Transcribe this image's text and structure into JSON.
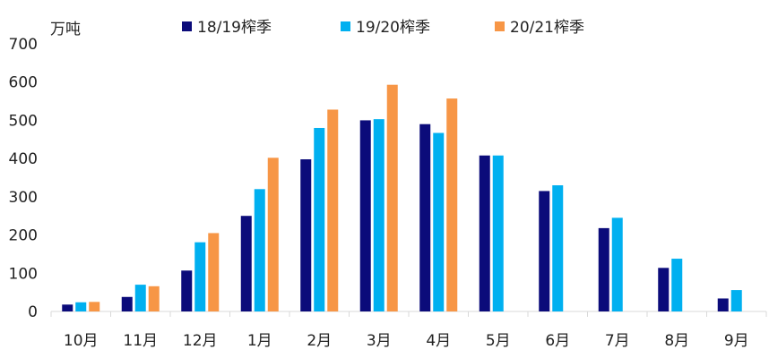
{
  "chart_data": {
    "type": "bar",
    "title": "",
    "xlabel": "",
    "ylabel": "万吨",
    "ylim": [
      0,
      700
    ],
    "yticks": [
      0,
      100,
      200,
      300,
      400,
      500,
      600,
      700
    ],
    "grid": false,
    "legend_position": "top",
    "categories": [
      "10月",
      "11月",
      "12月",
      "1月",
      "2月",
      "3月",
      "4月",
      "5月",
      "6月",
      "7月",
      "8月",
      "9月"
    ],
    "series": [
      {
        "name": "18/19榨季",
        "color": "#0b0b7a",
        "values": [
          18,
          38,
          107,
          250,
          398,
          500,
          490,
          408,
          315,
          218,
          114,
          34
        ]
      },
      {
        "name": "19/20榨季",
        "color": "#00b0f0",
        "values": [
          24,
          70,
          181,
          320,
          480,
          503,
          467,
          408,
          330,
          245,
          138,
          56
        ]
      },
      {
        "name": "20/21榨季",
        "color": "#f79646",
        "values": [
          25,
          66,
          205,
          402,
          528,
          593,
          557,
          null,
          null,
          null,
          null,
          null
        ]
      }
    ]
  }
}
